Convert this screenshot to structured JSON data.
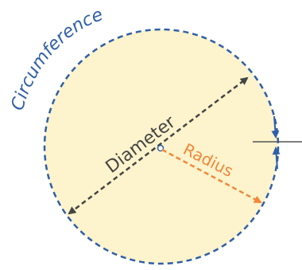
{
  "labels": {
    "circumference": "Circumference",
    "diameter": "Diameter",
    "radius": "Radius"
  },
  "colors": {
    "fill": "#fdf3cc",
    "circumference": "#2f5fa8",
    "diameter": "#444444",
    "radius": "#f0883a",
    "tick": "#555555"
  }
}
